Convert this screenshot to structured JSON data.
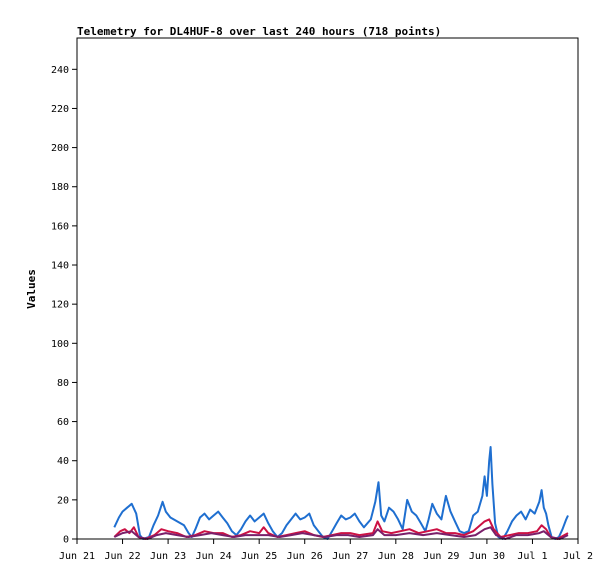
{
  "chart_data": {
    "type": "line",
    "title": "Telemetry for DL4HUF-8 over last 240 hours (718 points)",
    "xlabel": "",
    "ylabel": "Values",
    "ylim": [
      0,
      256
    ],
    "yticks": [
      0,
      20,
      40,
      60,
      80,
      100,
      120,
      140,
      160,
      180,
      200,
      220,
      240
    ],
    "xlim_days": [
      0,
      11
    ],
    "xtick_labels": [
      "Jun 21",
      "Jun 22",
      "Jun 23",
      "Jun 24",
      "Jun 25",
      "Jun 26",
      "Jun 27",
      "Jun 28",
      "Jun 29",
      "Jun 30",
      "Jul 1",
      "Jul 2"
    ],
    "grid": false,
    "legend": "none",
    "series": [
      {
        "color": "#1f6fd0",
        "points": [
          [
            0.82,
            6
          ],
          [
            0.92,
            11
          ],
          [
            1.0,
            14
          ],
          [
            1.1,
            16
          ],
          [
            1.2,
            18
          ],
          [
            1.3,
            13
          ],
          [
            1.38,
            2
          ],
          [
            1.45,
            0
          ],
          [
            1.58,
            1
          ],
          [
            1.68,
            7
          ],
          [
            1.78,
            12
          ],
          [
            1.88,
            19
          ],
          [
            1.95,
            14
          ],
          [
            2.05,
            11
          ],
          [
            2.2,
            9
          ],
          [
            2.35,
            7
          ],
          [
            2.45,
            3
          ],
          [
            2.52,
            1
          ],
          [
            2.6,
            5
          ],
          [
            2.7,
            11
          ],
          [
            2.8,
            13
          ],
          [
            2.9,
            10
          ],
          [
            3.0,
            12
          ],
          [
            3.1,
            14
          ],
          [
            3.2,
            11
          ],
          [
            3.3,
            8
          ],
          [
            3.4,
            4
          ],
          [
            3.5,
            2
          ],
          [
            3.6,
            5
          ],
          [
            3.7,
            9
          ],
          [
            3.8,
            12
          ],
          [
            3.9,
            9
          ],
          [
            4.0,
            11
          ],
          [
            4.1,
            13
          ],
          [
            4.2,
            8
          ],
          [
            4.3,
            4
          ],
          [
            4.4,
            1
          ],
          [
            4.5,
            3
          ],
          [
            4.6,
            7
          ],
          [
            4.7,
            10
          ],
          [
            4.8,
            13
          ],
          [
            4.9,
            10
          ],
          [
            5.0,
            11
          ],
          [
            5.1,
            13
          ],
          [
            5.2,
            7
          ],
          [
            5.3,
            4
          ],
          [
            5.4,
            1
          ],
          [
            5.5,
            0
          ],
          [
            5.6,
            4
          ],
          [
            5.7,
            8
          ],
          [
            5.8,
            12
          ],
          [
            5.9,
            10
          ],
          [
            6.0,
            11
          ],
          [
            6.1,
            13
          ],
          [
            6.2,
            9
          ],
          [
            6.3,
            6
          ],
          [
            6.45,
            10
          ],
          [
            6.55,
            19
          ],
          [
            6.62,
            29
          ],
          [
            6.68,
            12
          ],
          [
            6.75,
            9
          ],
          [
            6.85,
            16
          ],
          [
            6.95,
            14
          ],
          [
            7.05,
            10
          ],
          [
            7.15,
            5
          ],
          [
            7.25,
            20
          ],
          [
            7.35,
            14
          ],
          [
            7.45,
            12
          ],
          [
            7.55,
            8
          ],
          [
            7.65,
            4
          ],
          [
            7.72,
            10
          ],
          [
            7.8,
            18
          ],
          [
            7.9,
            13
          ],
          [
            8.0,
            10
          ],
          [
            8.05,
            16
          ],
          [
            8.1,
            22
          ],
          [
            8.2,
            14
          ],
          [
            8.3,
            9
          ],
          [
            8.4,
            4
          ],
          [
            8.5,
            3
          ],
          [
            8.6,
            4
          ],
          [
            8.7,
            12
          ],
          [
            8.8,
            14
          ],
          [
            8.9,
            22
          ],
          [
            8.95,
            32
          ],
          [
            9.0,
            22
          ],
          [
            9.05,
            40
          ],
          [
            9.08,
            47
          ],
          [
            9.12,
            28
          ],
          [
            9.18,
            8
          ],
          [
            9.25,
            1
          ],
          [
            9.35,
            0
          ],
          [
            9.45,
            4
          ],
          [
            9.55,
            9
          ],
          [
            9.65,
            12
          ],
          [
            9.75,
            14
          ],
          [
            9.85,
            10
          ],
          [
            9.95,
            15
          ],
          [
            10.05,
            13
          ],
          [
            10.15,
            19
          ],
          [
            10.2,
            25
          ],
          [
            10.25,
            16
          ],
          [
            10.3,
            13
          ],
          [
            10.35,
            7
          ],
          [
            10.42,
            1
          ],
          [
            10.5,
            0
          ],
          [
            10.58,
            1
          ],
          [
            10.66,
            5
          ],
          [
            10.74,
            10
          ],
          [
            10.78,
            12
          ]
        ]
      },
      {
        "color": "#cc1144",
        "points": [
          [
            0.82,
            1
          ],
          [
            0.95,
            4
          ],
          [
            1.05,
            5
          ],
          [
            1.15,
            3
          ],
          [
            1.25,
            6
          ],
          [
            1.35,
            1
          ],
          [
            1.5,
            0
          ],
          [
            1.7,
            2
          ],
          [
            1.85,
            5
          ],
          [
            2.0,
            4
          ],
          [
            2.2,
            3
          ],
          [
            2.4,
            1
          ],
          [
            2.6,
            2
          ],
          [
            2.8,
            4
          ],
          [
            3.0,
            3
          ],
          [
            3.2,
            3
          ],
          [
            3.4,
            1
          ],
          [
            3.6,
            2
          ],
          [
            3.8,
            4
          ],
          [
            4.0,
            3
          ],
          [
            4.1,
            6
          ],
          [
            4.2,
            3
          ],
          [
            4.4,
            1
          ],
          [
            4.6,
            2
          ],
          [
            4.8,
            3
          ],
          [
            5.0,
            4
          ],
          [
            5.2,
            2
          ],
          [
            5.4,
            1
          ],
          [
            5.6,
            2
          ],
          [
            5.8,
            3
          ],
          [
            6.0,
            3
          ],
          [
            6.2,
            2
          ],
          [
            6.5,
            3
          ],
          [
            6.6,
            9
          ],
          [
            6.7,
            4
          ],
          [
            6.9,
            3
          ],
          [
            7.1,
            4
          ],
          [
            7.3,
            5
          ],
          [
            7.5,
            3
          ],
          [
            7.7,
            4
          ],
          [
            7.9,
            5
          ],
          [
            8.1,
            3
          ],
          [
            8.3,
            3
          ],
          [
            8.5,
            2
          ],
          [
            8.7,
            4
          ],
          [
            8.85,
            7
          ],
          [
            8.95,
            9
          ],
          [
            9.05,
            10
          ],
          [
            9.15,
            5
          ],
          [
            9.3,
            1
          ],
          [
            9.5,
            2
          ],
          [
            9.7,
            3
          ],
          [
            9.9,
            3
          ],
          [
            10.1,
            4
          ],
          [
            10.2,
            7
          ],
          [
            10.3,
            5
          ],
          [
            10.4,
            1
          ],
          [
            10.55,
            0
          ],
          [
            10.7,
            2
          ],
          [
            10.78,
            3
          ]
        ]
      },
      {
        "color": "#7a1f6a",
        "points": [
          [
            0.82,
            1
          ],
          [
            1.0,
            3
          ],
          [
            1.2,
            4
          ],
          [
            1.35,
            1
          ],
          [
            1.55,
            0
          ],
          [
            1.75,
            2
          ],
          [
            1.95,
            3
          ],
          [
            2.2,
            2
          ],
          [
            2.45,
            1
          ],
          [
            2.7,
            2
          ],
          [
            2.95,
            3
          ],
          [
            3.2,
            2
          ],
          [
            3.45,
            1
          ],
          [
            3.7,
            2
          ],
          [
            3.95,
            2
          ],
          [
            4.2,
            2
          ],
          [
            4.45,
            1
          ],
          [
            4.7,
            2
          ],
          [
            4.95,
            3
          ],
          [
            5.2,
            2
          ],
          [
            5.45,
            1
          ],
          [
            5.7,
            2
          ],
          [
            5.95,
            2
          ],
          [
            6.2,
            1
          ],
          [
            6.5,
            2
          ],
          [
            6.6,
            5
          ],
          [
            6.75,
            2
          ],
          [
            7.0,
            2
          ],
          [
            7.3,
            3
          ],
          [
            7.6,
            2
          ],
          [
            7.9,
            3
          ],
          [
            8.2,
            2
          ],
          [
            8.5,
            1
          ],
          [
            8.75,
            2
          ],
          [
            8.95,
            5
          ],
          [
            9.08,
            6
          ],
          [
            9.2,
            2
          ],
          [
            9.4,
            0
          ],
          [
            9.65,
            2
          ],
          [
            9.9,
            2
          ],
          [
            10.15,
            3
          ],
          [
            10.25,
            4
          ],
          [
            10.4,
            1
          ],
          [
            10.6,
            0
          ],
          [
            10.78,
            2
          ]
        ]
      }
    ]
  }
}
